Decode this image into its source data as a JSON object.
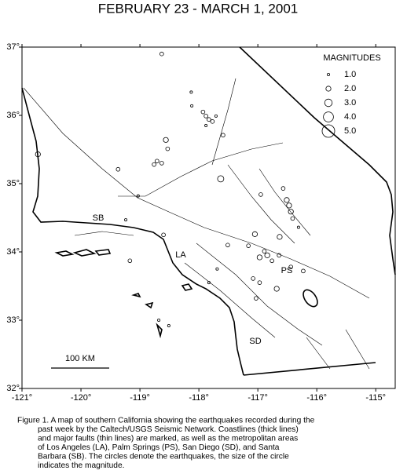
{
  "title": "FEBRUARY 23 - MARCH 1, 2001",
  "map": {
    "lon_range": [
      -121,
      -114.67
    ],
    "lat_range": [
      32,
      37
    ],
    "lon_ticks": [
      {
        "value": -121,
        "label": "-121°"
      },
      {
        "value": -120,
        "label": "-120°"
      },
      {
        "value": -119,
        "label": "-119°"
      },
      {
        "value": -118,
        "label": "-118°"
      },
      {
        "value": -117,
        "label": "-117°"
      },
      {
        "value": -116,
        "label": "-116°"
      },
      {
        "value": -115,
        "label": "-115°"
      }
    ],
    "lat_ticks": [
      {
        "value": 32,
        "label": "32°"
      },
      {
        "value": 33,
        "label": "33°"
      },
      {
        "value": 34,
        "label": "34°"
      },
      {
        "value": 35,
        "label": "35°"
      },
      {
        "value": 36,
        "label": "36°"
      },
      {
        "value": 37,
        "label": "37°"
      }
    ]
  },
  "legend": {
    "title": "MAGNITUDES",
    "items": [
      {
        "value": 1,
        "label": "1.0"
      },
      {
        "value": 2,
        "label": "2.0"
      },
      {
        "value": 3,
        "label": "3.0"
      },
      {
        "value": 4,
        "label": "4.0"
      },
      {
        "value": 5,
        "label": "5.0"
      }
    ]
  },
  "places": {
    "sb": "SB",
    "la": "LA",
    "ps": "PS",
    "sd": "SD"
  },
  "scale_bar": "100 KM",
  "earthquakes": {
    "lon": [
      -118.63,
      -118.13,
      -118.12,
      -117.93,
      -117.88,
      -117.83,
      -117.77,
      -117.88,
      -117.71,
      -117.59,
      -118.56,
      -118.53,
      -118.71,
      -118.63,
      -118.76,
      -119.37,
      -120.73,
      -117.63,
      -116.95,
      -116.57,
      -116.51,
      -116.47,
      -116.44,
      -116.41,
      -116.31,
      -117.05,
      -116.63,
      -117.16,
      -116.89,
      -118.6,
      -119.24,
      -119.03,
      -117.51,
      -116.97,
      -116.84,
      -116.76,
      -116.64,
      -117.08,
      -116.97,
      -116.68,
      -117.03,
      -116.44,
      -116.23,
      -117.69,
      -117.83,
      -118.68,
      -118.51,
      -119.17
    ],
    "lat": [
      36.9,
      36.34,
      36.14,
      36.05,
      35.99,
      35.94,
      35.91,
      35.85,
      35.99,
      35.71,
      35.64,
      35.51,
      35.33,
      35.3,
      35.28,
      35.21,
      35.43,
      35.07,
      34.84,
      34.93,
      34.76,
      34.68,
      34.59,
      34.49,
      34.36,
      34.26,
      34.22,
      34.09,
      34.01,
      34.25,
      34.47,
      34.82,
      34.1,
      33.92,
      33.95,
      33.87,
      33.95,
      33.61,
      33.55,
      33.46,
      33.32,
      33.78,
      33.72,
      33.75,
      33.55,
      33.0,
      32.92,
      33.87
    ],
    "mag": [
      1.5,
      1.0,
      1.0,
      1.5,
      1.5,
      1.5,
      1.5,
      1.0,
      1.0,
      1.5,
      2.0,
      1.5,
      1.5,
      1.5,
      1.5,
      1.5,
      2.0,
      2.5,
      1.5,
      1.5,
      2.0,
      2.0,
      2.0,
      1.5,
      1.0,
      2.0,
      2.0,
      1.5,
      1.5,
      1.5,
      1.0,
      1.0,
      1.5,
      2.0,
      2.0,
      1.5,
      1.5,
      1.5,
      1.5,
      2.0,
      1.5,
      1.5,
      1.5,
      1.0,
      1.0,
      1.0,
      1.0,
      1.5
    ]
  },
  "caption": [
    "Figure 1. A map of southern California showing the earthquakes recorded during the",
    "past week by the Caltech/USGS Seismic Network.  Coastlines (thick lines)",
    "and major faults (thin lines) are marked, as well as the metropolitan areas",
    "of Los Angeles (LA), Palm Springs (PS), San Diego (SD), and Santa",
    "Barbara (SB).  The circles denote the earthquakes, the size of the circle",
    "indicates the magnitude."
  ]
}
